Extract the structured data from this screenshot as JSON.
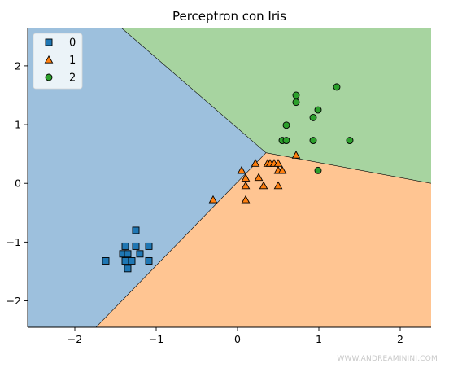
{
  "chart_data": {
    "type": "scatter",
    "title": "Perceptron con Iris",
    "xlabel": "",
    "ylabel": "",
    "xlim": [
      -2.58,
      2.38
    ],
    "ylim": [
      -2.45,
      2.65
    ],
    "xticks": [
      -2,
      -1,
      0,
      1,
      2
    ],
    "yticks": [
      -2,
      -1,
      0,
      1,
      2
    ],
    "xtick_labels": [
      "−2",
      "−1",
      "0",
      "1",
      "2"
    ],
    "ytick_labels": [
      "−2",
      "−1",
      "0",
      "1",
      "2"
    ],
    "grid": false,
    "legend_position": "top-left",
    "decision_regions": {
      "center": [
        0.35,
        0.52
      ],
      "boundary_ends": {
        "class0_class2": [
          -1.43,
          2.65
        ],
        "class2_class1": [
          2.38,
          0.0
        ],
        "class0_class1": [
          -1.74,
          -2.45
        ]
      },
      "colors": {
        "0": "#9dc0dd",
        "1": "#ffc592",
        "2": "#a7d4a0"
      }
    },
    "series": [
      {
        "name": "0",
        "marker": "square",
        "color": "#1f77b4",
        "points": [
          [
            -1.25,
            -0.8
          ],
          [
            -1.62,
            -1.32
          ],
          [
            -1.38,
            -1.07
          ],
          [
            -1.25,
            -1.07
          ],
          [
            -1.09,
            -1.07
          ],
          [
            -1.41,
            -1.2
          ],
          [
            -1.35,
            -1.2
          ],
          [
            -1.2,
            -1.2
          ],
          [
            -1.38,
            -1.32
          ],
          [
            -1.3,
            -1.32
          ],
          [
            -1.09,
            -1.32
          ],
          [
            -1.35,
            -1.45
          ]
        ]
      },
      {
        "name": "1",
        "marker": "triangle",
        "color": "#ff7f0e",
        "points": [
          [
            -0.3,
            -0.28
          ],
          [
            0.05,
            0.22
          ],
          [
            0.1,
            0.09
          ],
          [
            0.1,
            -0.04
          ],
          [
            0.1,
            -0.28
          ],
          [
            0.22,
            0.34
          ],
          [
            0.26,
            0.1
          ],
          [
            0.32,
            -0.04
          ],
          [
            0.37,
            0.34
          ],
          [
            0.4,
            0.34
          ],
          [
            0.45,
            0.34
          ],
          [
            0.5,
            0.34
          ],
          [
            0.5,
            0.22
          ],
          [
            0.55,
            0.22
          ],
          [
            0.5,
            -0.04
          ],
          [
            0.72,
            0.48
          ]
        ]
      },
      {
        "name": "2",
        "marker": "circle",
        "color": "#2ca02c",
        "points": [
          [
            0.72,
            1.5
          ],
          [
            0.72,
            1.38
          ],
          [
            1.22,
            1.64
          ],
          [
            0.99,
            1.25
          ],
          [
            0.93,
            1.12
          ],
          [
            0.6,
            0.99
          ],
          [
            0.55,
            0.73
          ],
          [
            0.6,
            0.73
          ],
          [
            0.93,
            0.73
          ],
          [
            1.38,
            0.73
          ],
          [
            0.99,
            0.22
          ]
        ]
      }
    ]
  },
  "watermark": "WWW.ANDREAMININI.COM"
}
